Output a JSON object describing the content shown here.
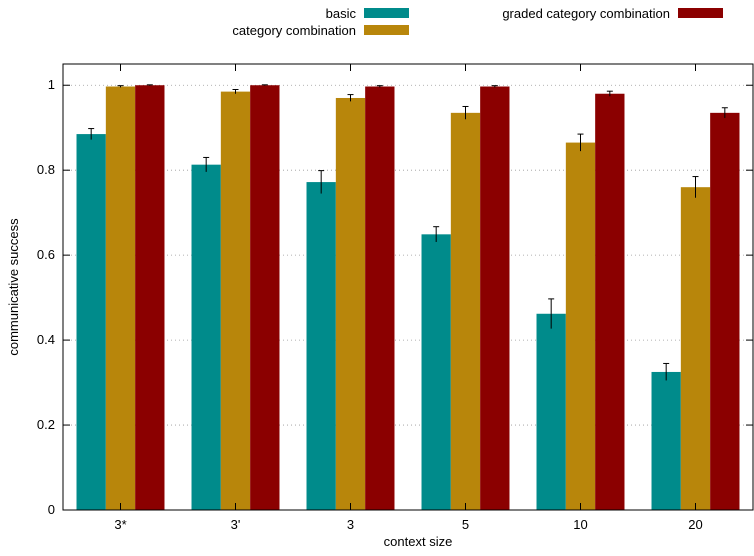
{
  "chart_data": {
    "type": "bar",
    "xlabel": "context size",
    "ylabel": "communicative success",
    "ylim": [
      0,
      1.05
    ],
    "yticks": [
      0,
      0.2,
      0.4,
      0.6,
      0.8,
      1
    ],
    "ytick_labels": [
      "0",
      "0.2",
      "0.4",
      "0.6",
      "0.8",
      "1"
    ],
    "grid": "horizontal dotted",
    "legend_position": "top, outside plot",
    "categories": [
      "3*",
      "3'",
      "3",
      "5",
      "10",
      "20"
    ],
    "series": [
      {
        "name": "basic",
        "color": "#008b8b",
        "values": [
          0.885,
          0.813,
          0.772,
          0.649,
          0.462,
          0.325
        ],
        "errors": [
          0.013,
          0.017,
          0.027,
          0.018,
          0.035,
          0.02
        ]
      },
      {
        "name": "category combination",
        "color": "#b8860b",
        "values": [
          0.997,
          0.985,
          0.97,
          0.935,
          0.865,
          0.76
        ],
        "errors": [
          0.002,
          0.005,
          0.008,
          0.015,
          0.02,
          0.025
        ]
      },
      {
        "name": "graded category combination",
        "color": "#8b0000",
        "values": [
          1.0,
          1.0,
          0.997,
          0.997,
          0.98,
          0.935
        ],
        "errors": [
          0.001,
          0.001,
          0.002,
          0.002,
          0.006,
          0.012
        ]
      }
    ]
  }
}
